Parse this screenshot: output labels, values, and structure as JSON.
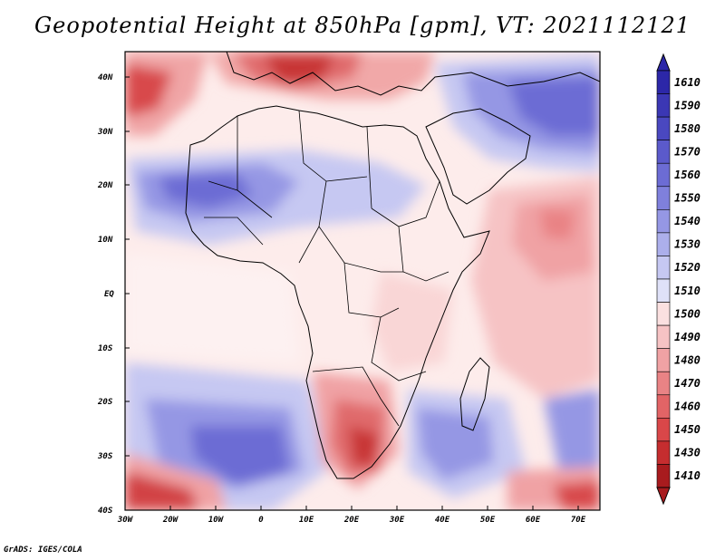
{
  "title": "Geopotential Height at 850hPa [gpm], VT: 2021112121",
  "credit": "GrADS: IGES/COLA",
  "lat_labels": [
    "40N",
    "30N",
    "20N",
    "10N",
    "EQ",
    "10S",
    "20S",
    "30S",
    "40S"
  ],
  "lon_labels": [
    "30W",
    "20W",
    "10W",
    "0",
    "10E",
    "20E",
    "30E",
    "40E",
    "50E",
    "60E",
    "70E"
  ],
  "colorbar": {
    "levels": [
      "1610",
      "1590",
      "1580",
      "1570",
      "1560",
      "1550",
      "1540",
      "1530",
      "1520",
      "1510",
      "1500",
      "1490",
      "1480",
      "1470",
      "1460",
      "1450",
      "1430",
      "1410"
    ],
    "colors": [
      "#2c27a8",
      "#3b37b4",
      "#4a48c0",
      "#5b5acb",
      "#6c6cd4",
      "#7f80dc",
      "#9597e4",
      "#acafeb",
      "#c6c8f2",
      "#dfe1f8",
      "#fbe0e0",
      "#f6c3c4",
      "#f0a2a4",
      "#e98385",
      "#e26466",
      "#d94749",
      "#c52d2f",
      "#a81b1e"
    ]
  }
}
